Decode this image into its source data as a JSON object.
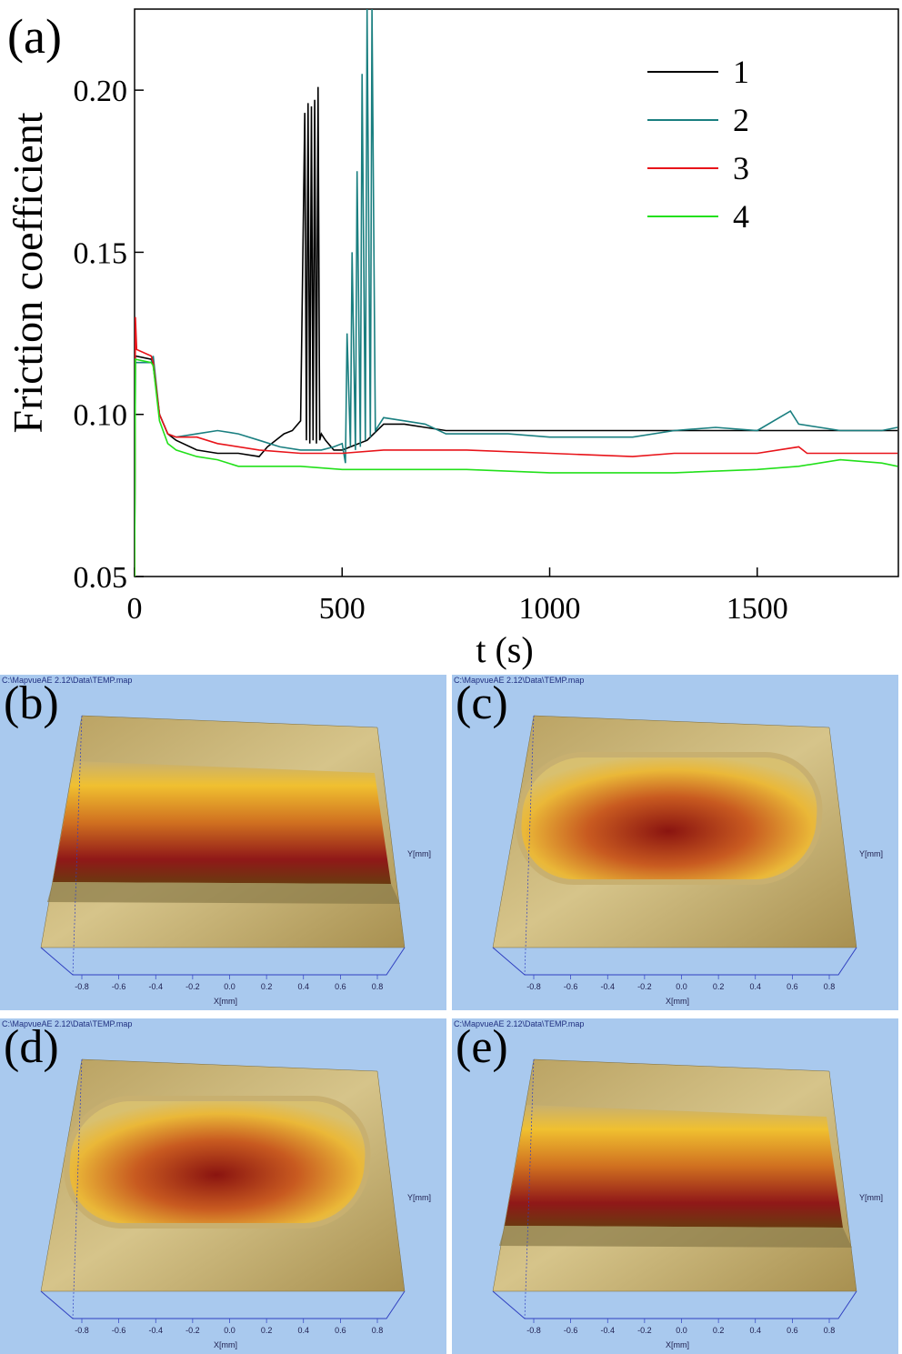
{
  "chart_data": {
    "type": "line",
    "panel_label": "(a)",
    "xlabel": "t (s)",
    "ylabel": "Friction coefficient",
    "xlim": [
      0,
      1840
    ],
    "ylim": [
      0.05,
      0.225
    ],
    "xticks": [
      0,
      500,
      1000,
      1500
    ],
    "yticks": [
      0.05,
      {
        "value": 0.1,
        "label": "0.10"
      },
      0.15,
      {
        "value": 0.2,
        "label": "0.20"
      }
    ],
    "legend": "upper right",
    "series": [
      {
        "name": "1",
        "color": "#000000",
        "x": [
          0,
          2,
          40,
          45,
          60,
          80,
          100,
          150,
          200,
          250,
          300,
          320,
          340,
          360,
          380,
          400,
          410,
          414,
          418,
          422,
          426,
          430,
          434,
          438,
          442,
          446,
          450,
          460,
          480,
          500,
          520,
          560,
          600,
          650,
          700,
          750,
          800,
          1000,
          1200,
          1400,
          1600,
          1838
        ],
        "values": [
          0.05,
          0.118,
          0.117,
          0.115,
          0.1,
          0.094,
          0.092,
          0.089,
          0.088,
          0.088,
          0.087,
          0.09,
          0.092,
          0.094,
          0.095,
          0.098,
          0.193,
          0.092,
          0.196,
          0.091,
          0.195,
          0.092,
          0.197,
          0.091,
          0.201,
          0.092,
          0.094,
          0.092,
          0.089,
          0.089,
          0.09,
          0.092,
          0.097,
          0.097,
          0.096,
          0.095,
          0.095,
          0.095,
          0.095,
          0.095,
          0.095,
          0.095
        ]
      },
      {
        "name": "2",
        "color": "#1a7f80",
        "x": [
          0,
          2,
          40,
          45,
          60,
          80,
          100,
          150,
          200,
          250,
          300,
          350,
          400,
          450,
          480,
          500,
          508,
          512,
          520,
          524,
          532,
          536,
          544,
          548,
          556,
          560,
          568,
          572,
          580,
          600,
          650,
          700,
          750,
          800,
          900,
          1000,
          1100,
          1200,
          1300,
          1400,
          1500,
          1580,
          1600,
          1700,
          1800,
          1838
        ],
        "values": [
          0.05,
          0.116,
          0.116,
          0.118,
          0.1,
          0.094,
          0.093,
          0.094,
          0.095,
          0.094,
          0.092,
          0.09,
          0.089,
          0.089,
          0.09,
          0.091,
          0.085,
          0.125,
          0.09,
          0.15,
          0.089,
          0.175,
          0.09,
          0.205,
          0.092,
          0.225,
          0.093,
          0.225,
          0.095,
          0.099,
          0.098,
          0.097,
          0.094,
          0.094,
          0.094,
          0.093,
          0.093,
          0.093,
          0.095,
          0.096,
          0.095,
          0.101,
          0.097,
          0.095,
          0.095,
          0.096
        ]
      },
      {
        "name": "3",
        "color": "#e8141a",
        "x": [
          0,
          2,
          5,
          40,
          45,
          60,
          80,
          100,
          150,
          200,
          300,
          400,
          500,
          600,
          800,
          1000,
          1200,
          1300,
          1500,
          1600,
          1620,
          1700,
          1838
        ],
        "values": [
          0.05,
          0.13,
          0.12,
          0.118,
          0.116,
          0.1,
          0.094,
          0.093,
          0.093,
          0.091,
          0.089,
          0.088,
          0.088,
          0.089,
          0.089,
          0.088,
          0.087,
          0.088,
          0.088,
          0.09,
          0.088,
          0.088,
          0.088
        ]
      },
      {
        "name": "4",
        "color": "#22e01a",
        "x": [
          0,
          2,
          40,
          45,
          60,
          80,
          100,
          150,
          200,
          250,
          400,
          500,
          800,
          1000,
          1300,
          1500,
          1600,
          1700,
          1800,
          1838
        ],
        "values": [
          0.05,
          0.117,
          0.116,
          0.115,
          0.098,
          0.091,
          0.089,
          0.087,
          0.086,
          0.084,
          0.084,
          0.083,
          0.083,
          0.082,
          0.082,
          0.083,
          0.084,
          0.086,
          0.085,
          0.084
        ]
      }
    ]
  },
  "panels": [
    {
      "label": "(b)",
      "path": "C:\\MapvueAE 2.12\\Data\\TEMP.map",
      "x_label": "X[mm]",
      "y_label": "Y[mm]",
      "x_ticks": [
        "-0.8",
        "-0.6",
        "-0.4",
        "-0.2",
        "0.0",
        "0.2",
        "0.4",
        "0.6",
        "0.8"
      ]
    },
    {
      "label": "(c)",
      "path": "C:\\MapvueAE 2.12\\Data\\TEMP.map",
      "x_label": "X[mm]",
      "y_label": "Y[mm]",
      "x_ticks": [
        "-0.8",
        "-0.6",
        "-0.4",
        "-0.2",
        "0.0",
        "0.2",
        "0.4",
        "0.6",
        "0.8"
      ]
    },
    {
      "label": "(d)",
      "path": "C:\\MapvueAE 2.12\\Data\\TEMP.map",
      "x_label": "X[mm]",
      "y_label": "Y[mm]",
      "x_ticks": [
        "-0.8",
        "-0.6",
        "-0.4",
        "-0.2",
        "0.0",
        "0.2",
        "0.4",
        "0.6",
        "0.8"
      ]
    },
    {
      "label": "(e)",
      "path": "C:\\MapvueAE 2.12\\Data\\TEMP.map",
      "x_label": "X[mm]",
      "y_label": "Y[mm]",
      "x_ticks": [
        "-0.8",
        "-0.6",
        "-0.4",
        "-0.2",
        "0.0",
        "0.2",
        "0.4",
        "0.6",
        "0.8"
      ]
    }
  ]
}
